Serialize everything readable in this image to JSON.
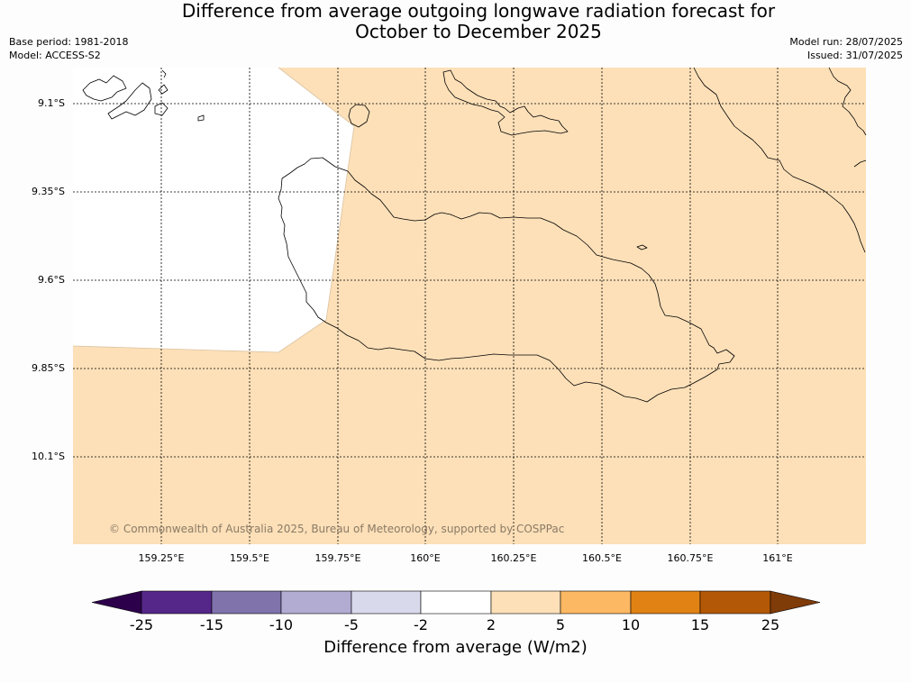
{
  "title": {
    "line1": "Difference from average outgoing longwave radiation forecast for",
    "line2": "October to December 2025"
  },
  "meta": {
    "base_period": "Base period: 1981-2018",
    "model": "Model: ACCESS-S2",
    "model_run": "Model run: 28/07/2025",
    "issued": "Issued: 31/07/2025"
  },
  "map": {
    "lat_labels": [
      "9.1°S",
      "9.35°S",
      "9.6°S",
      "9.85°S",
      "10.1°S"
    ],
    "lon_labels": [
      "159.25°E",
      "159.5°E",
      "159.75°E",
      "160°E",
      "160.25°E",
      "160.5°E",
      "160.75°E",
      "161°E"
    ],
    "copyright": "© Commonwealth of Australia 2025, Bureau of Meteorology, supported by COSPPac",
    "fill_color": "#fde0b8",
    "land_outline_color": "#000000",
    "neutral_color": "#ffffff"
  },
  "colorbar": {
    "label": "Difference from average (W/m2)",
    "ticks": [
      "-25",
      "-15",
      "-10",
      "-5",
      "-2",
      "2",
      "5",
      "10",
      "15",
      "25"
    ],
    "colors": [
      "#2d004b",
      "#542788",
      "#8073ac",
      "#b2abd2",
      "#d8daeb",
      "#ffffff",
      "#fde0b8",
      "#fdb863",
      "#e08214",
      "#b35806",
      "#7f3b08"
    ]
  }
}
